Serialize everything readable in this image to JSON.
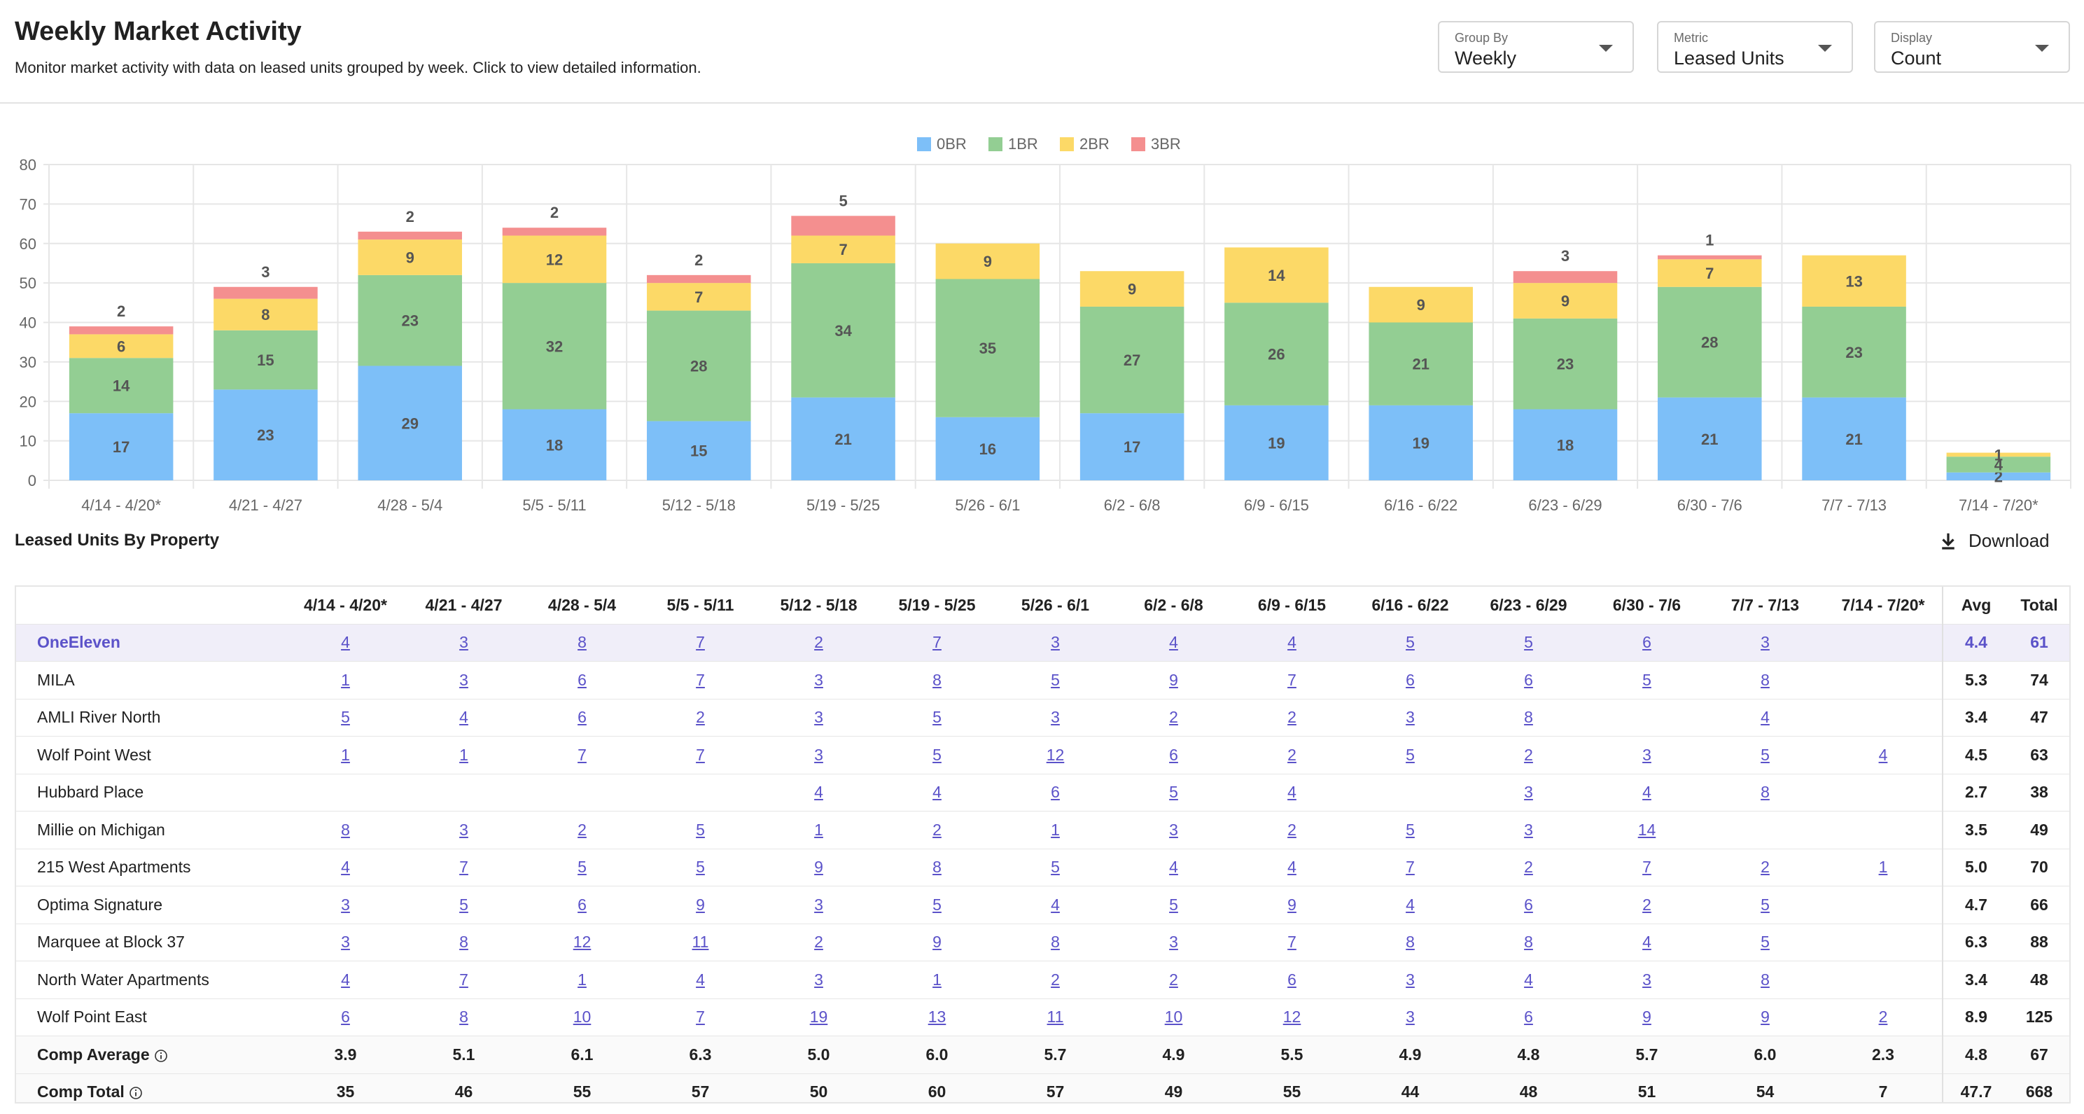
{
  "header": {
    "title": "Weekly Market Activity",
    "subtitle": "Monitor market activity with data on leased units grouped by week. Click to view detailed information."
  },
  "controls": [
    {
      "label": "Group By",
      "value": "Weekly"
    },
    {
      "label": "Metric",
      "value": "Leased Units"
    },
    {
      "label": "Display",
      "value": "Count"
    }
  ],
  "chart_data": {
    "type": "bar",
    "stacked": true,
    "categories": [
      "4/14 - 4/20*",
      "4/21 - 4/27",
      "4/28 - 5/4",
      "5/5 - 5/11",
      "5/12 - 5/18",
      "5/19 - 5/25",
      "5/26 - 6/1",
      "6/2 - 6/8",
      "6/9 - 6/15",
      "6/16 - 6/22",
      "6/23 - 6/29",
      "6/30 - 7/6",
      "7/7 - 7/13",
      "7/14 - 7/20*"
    ],
    "series": [
      {
        "name": "0BR",
        "color": "#7dbff8",
        "values": [
          17,
          23,
          29,
          18,
          15,
          21,
          16,
          17,
          19,
          19,
          18,
          21,
          21,
          2
        ]
      },
      {
        "name": "1BR",
        "color": "#93ce93",
        "values": [
          14,
          15,
          23,
          32,
          28,
          34,
          35,
          27,
          26,
          21,
          23,
          28,
          23,
          4
        ]
      },
      {
        "name": "2BR",
        "color": "#fcd967",
        "values": [
          6,
          8,
          9,
          12,
          7,
          7,
          9,
          9,
          14,
          9,
          9,
          7,
          13,
          1
        ]
      },
      {
        "name": "3BR",
        "color": "#f48f8f",
        "values": [
          2,
          3,
          2,
          2,
          2,
          5,
          0,
          0,
          0,
          0,
          3,
          1,
          0,
          0
        ]
      }
    ],
    "yticks": [
      0,
      10,
      20,
      30,
      40,
      50,
      60,
      70,
      80
    ],
    "ylim": [
      0,
      80
    ],
    "legend_position": "top-center",
    "grid": true
  },
  "section": {
    "title": "Leased Units By Property",
    "download_label": "Download"
  },
  "table": {
    "columns": [
      "4/14 - 4/20*",
      "4/21 - 4/27",
      "4/28 - 5/4",
      "5/5 - 5/11",
      "5/12 - 5/18",
      "5/19 - 5/25",
      "5/26 - 6/1",
      "6/2 - 6/8",
      "6/9 - 6/15",
      "6/16 - 6/22",
      "6/23 - 6/29",
      "6/30 - 7/6",
      "7/7 - 7/13",
      "7/14 - 7/20*"
    ],
    "avg_header": "Avg",
    "total_header": "Total",
    "rows": [
      {
        "name": "OneEleven",
        "highlight": true,
        "values": [
          "4",
          "3",
          "8",
          "7",
          "2",
          "7",
          "3",
          "4",
          "4",
          "5",
          "5",
          "6",
          "3",
          ""
        ],
        "avg": "4.4",
        "total": "61"
      },
      {
        "name": "MILA",
        "values": [
          "1",
          "3",
          "6",
          "7",
          "3",
          "8",
          "5",
          "9",
          "7",
          "6",
          "6",
          "5",
          "8",
          ""
        ],
        "avg": "5.3",
        "total": "74"
      },
      {
        "name": "AMLI River North",
        "values": [
          "5",
          "4",
          "6",
          "2",
          "3",
          "5",
          "3",
          "2",
          "2",
          "3",
          "8",
          "",
          "4",
          ""
        ],
        "avg": "3.4",
        "total": "47"
      },
      {
        "name": "Wolf Point West",
        "values": [
          "1",
          "1",
          "7",
          "7",
          "3",
          "5",
          "12",
          "6",
          "2",
          "5",
          "2",
          "3",
          "5",
          "4"
        ],
        "avg": "4.5",
        "total": "63"
      },
      {
        "name": "Hubbard Place",
        "values": [
          "",
          "",
          "",
          "",
          "4",
          "4",
          "6",
          "5",
          "4",
          "",
          "3",
          "4",
          "8",
          ""
        ],
        "avg": "2.7",
        "total": "38"
      },
      {
        "name": "Millie on Michigan",
        "values": [
          "8",
          "3",
          "2",
          "5",
          "1",
          "2",
          "1",
          "3",
          "2",
          "5",
          "3",
          "14",
          "",
          ""
        ],
        "avg": "3.5",
        "total": "49"
      },
      {
        "name": "215 West Apartments",
        "values": [
          "4",
          "7",
          "5",
          "5",
          "9",
          "8",
          "5",
          "4",
          "4",
          "7",
          "2",
          "7",
          "2",
          "1"
        ],
        "avg": "5.0",
        "total": "70"
      },
      {
        "name": "Optima Signature",
        "values": [
          "3",
          "5",
          "6",
          "9",
          "3",
          "5",
          "4",
          "5",
          "9",
          "4",
          "6",
          "2",
          "5",
          ""
        ],
        "avg": "4.7",
        "total": "66"
      },
      {
        "name": "Marquee at Block 37",
        "values": [
          "3",
          "8",
          "12",
          "11",
          "2",
          "9",
          "8",
          "3",
          "7",
          "8",
          "8",
          "4",
          "5",
          ""
        ],
        "avg": "6.3",
        "total": "88"
      },
      {
        "name": "North Water Apartments",
        "values": [
          "4",
          "7",
          "1",
          "4",
          "3",
          "1",
          "2",
          "2",
          "6",
          "3",
          "4",
          "3",
          "8",
          ""
        ],
        "avg": "3.4",
        "total": "48"
      },
      {
        "name": "Wolf Point East",
        "values": [
          "6",
          "8",
          "10",
          "7",
          "19",
          "13",
          "11",
          "10",
          "12",
          "3",
          "6",
          "9",
          "9",
          "2"
        ],
        "avg": "8.9",
        "total": "125"
      }
    ],
    "summary": [
      {
        "name": "Comp Average",
        "values": [
          "3.9",
          "5.1",
          "6.1",
          "6.3",
          "5.0",
          "6.0",
          "5.7",
          "4.9",
          "5.5",
          "4.9",
          "4.8",
          "5.7",
          "6.0",
          "2.3"
        ],
        "avg": "4.8",
        "total": "67"
      },
      {
        "name": "Comp Total",
        "values": [
          "35",
          "46",
          "55",
          "57",
          "50",
          "60",
          "57",
          "49",
          "55",
          "44",
          "48",
          "51",
          "54",
          "7"
        ],
        "avg": "47.7",
        "total": "668"
      }
    ]
  }
}
